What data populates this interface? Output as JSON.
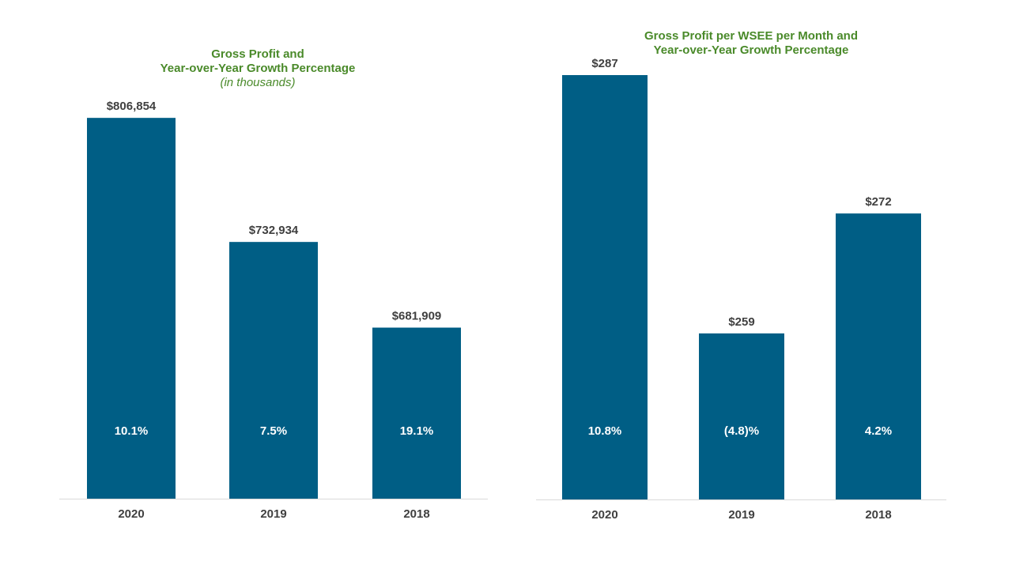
{
  "colors": {
    "bar": "#005e85",
    "title": "#4a8a2a",
    "value_label": "#404040",
    "growth_label": "#ffffff",
    "axis_line": "#d9d9d9",
    "tick_label": "#404040"
  },
  "chart_data": [
    {
      "type": "bar",
      "title_line1": "Gross Profit and",
      "title_line2": "Year-over-Year  Growth Percentage",
      "subtitle": "(in thousands)",
      "categories": [
        "2020",
        "2019",
        "2018"
      ],
      "values": [
        806854,
        732934,
        681909
      ],
      "value_labels": [
        "$806,854",
        "$732,934",
        "$681,909"
      ],
      "growth_labels": [
        "10.1%",
        "7.5%",
        "19.1%"
      ],
      "ylim": [
        580000,
        830000
      ],
      "xlabel": "",
      "ylabel": "",
      "grid": false
    },
    {
      "type": "bar",
      "title_line1": "Gross Profit per WSEE per Month and",
      "title_line2": "Year-over-Year  Growth Percentage",
      "categories": [
        "2020",
        "2019",
        "2018"
      ],
      "values": [
        287,
        259,
        272
      ],
      "value_labels": [
        "$287",
        "$259",
        "$272"
      ],
      "growth_labels": [
        "10.8%",
        "(4.8)%",
        "4.2%"
      ],
      "ylim": [
        241,
        290
      ],
      "xlabel": "",
      "ylabel": "",
      "grid": false
    }
  ]
}
